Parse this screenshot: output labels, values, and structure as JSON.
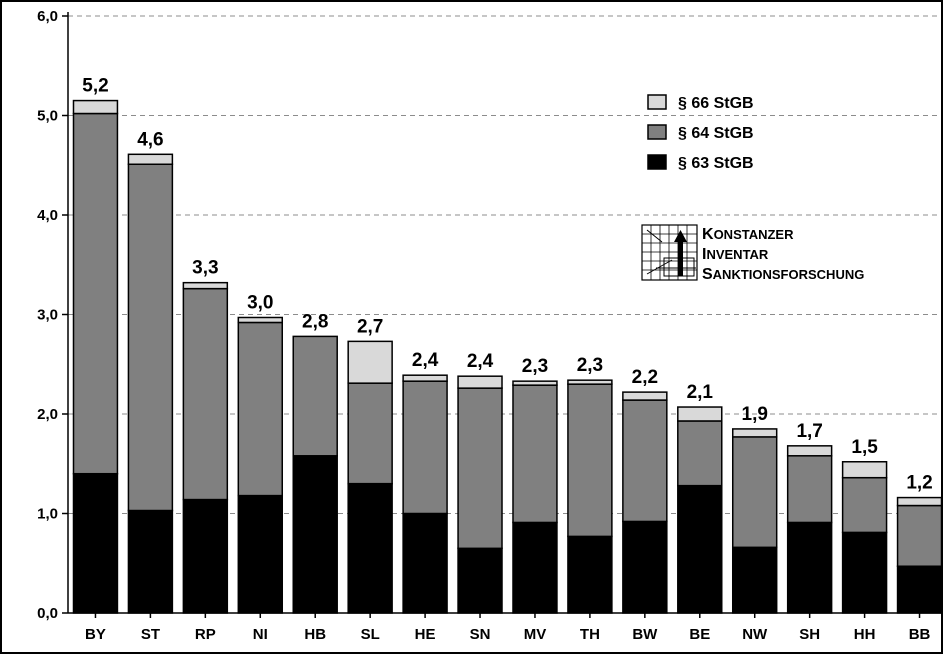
{
  "chart_data": {
    "type": "bar",
    "stacked": true,
    "title": "",
    "xlabel": "",
    "ylabel": "",
    "ylim": [
      0,
      6
    ],
    "yticks": [
      "0,0",
      "1,0",
      "2,0",
      "3,0",
      "4,0",
      "5,0",
      "6,0"
    ],
    "grid": true,
    "legend_position": "top-right",
    "categories": [
      "BY",
      "ST",
      "RP",
      "NI",
      "HB",
      "SL",
      "HE",
      "SN",
      "MV",
      "TH",
      "BW",
      "BE",
      "NW",
      "SH",
      "HH",
      "BB"
    ],
    "totals_labels": [
      "5,2",
      "4,6",
      "3,3",
      "3,0",
      "2,8",
      "2,7",
      "2,4",
      "2,4",
      "2,3",
      "2,3",
      "2,2",
      "2,1",
      "1,9",
      "1,7",
      "1,5",
      "1,2"
    ],
    "series": [
      {
        "name": "§ 63 StGB",
        "color": "#000000",
        "values": [
          1.4,
          1.03,
          1.14,
          1.18,
          1.58,
          1.3,
          1.0,
          0.65,
          0.91,
          0.77,
          0.92,
          1.28,
          0.66,
          0.91,
          0.81,
          0.47
        ]
      },
      {
        "name": "§ 64 StGB",
        "color": "#808080",
        "values": [
          3.62,
          3.48,
          2.12,
          1.74,
          1.2,
          1.01,
          1.33,
          1.61,
          1.38,
          1.53,
          1.22,
          0.65,
          1.11,
          0.67,
          0.55,
          0.61
        ]
      },
      {
        "name": "§ 66 StGB",
        "color": "#d9d9d9",
        "values": [
          0.13,
          0.1,
          0.06,
          0.05,
          0.0,
          0.42,
          0.06,
          0.12,
          0.04,
          0.04,
          0.08,
          0.14,
          0.08,
          0.1,
          0.16,
          0.08
        ]
      }
    ]
  },
  "legend": {
    "items": [
      {
        "label": "§ 66 StGB",
        "color": "#d9d9d9"
      },
      {
        "label": "§ 64 StGB",
        "color": "#808080"
      },
      {
        "label": "§ 63 StGB",
        "color": "#000000"
      }
    ]
  },
  "logo": {
    "line1_cap": "K",
    "line1_rest": "ONSTANZER",
    "line2_cap": "I",
    "line2_rest": "NVENTAR",
    "line3_cap": "S",
    "line3_rest": "ANKTIONSFORSCHUNG"
  }
}
